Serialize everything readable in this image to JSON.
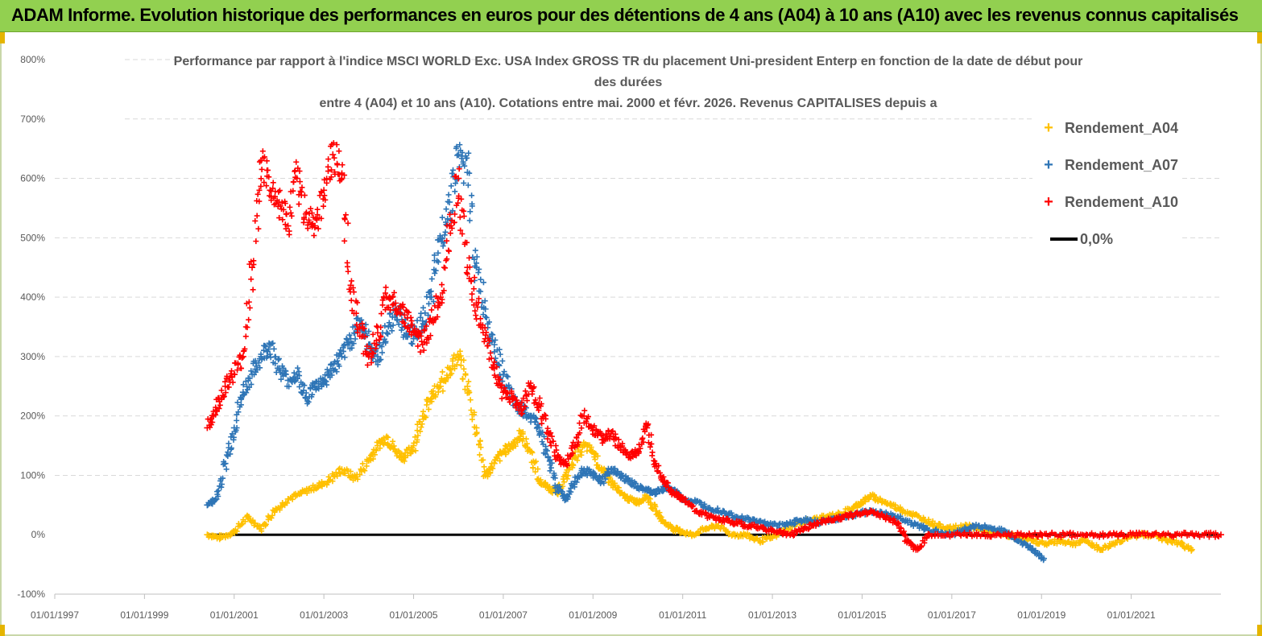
{
  "banner": {
    "title": "ADAM Informe. Evolution historique des performances en euros pour des détentions de 4 ans (A04) à 10 ans (A10) avec les revenus connus capitalisés"
  },
  "colors": {
    "banner_bg": "#92d050",
    "a04": "#ffc000",
    "a07": "#2e75b6",
    "a10": "#ff0000",
    "zero": "#000000"
  },
  "chart_data": {
    "type": "scatter",
    "title_lines": [
      "Performance par rapport à l'indice MSCI WORLD Exc. USA Index GROSS TR  du placement Uni-president Enterp  en fonction de la date de début pour",
      "des durées",
      "entre 4 (A04) et 10 ans (A10). Cotations entre mai. 2000 et févr. 2026. Revenus CAPITALISES depuis a"
    ],
    "xlabel": "",
    "ylabel": "",
    "xlim": [
      1997.0,
      2023.0
    ],
    "ylim": [
      -100,
      800
    ],
    "y_ticks": [
      "800%",
      "700%",
      "600%",
      "500%",
      "400%",
      "300%",
      "200%",
      "100%",
      "0%",
      "-100%"
    ],
    "y_tick_values": [
      800,
      700,
      600,
      500,
      400,
      300,
      200,
      100,
      0,
      -100
    ],
    "x_ticks": [
      "01/01/1997",
      "01/01/1999",
      "01/01/2001",
      "01/01/2003",
      "01/01/2005",
      "01/01/2007",
      "01/01/2009",
      "01/01/2011",
      "01/01/2013",
      "01/01/2015",
      "01/01/2017",
      "01/01/2019",
      "01/01/2021"
    ],
    "x_tick_values": [
      1997,
      1999,
      2001,
      2003,
      2005,
      2007,
      2009,
      2011,
      2013,
      2015,
      2017,
      2019,
      2021
    ],
    "gridlines": "horizontal",
    "legend_position": "top-right",
    "series": [
      {
        "name": "Rendement_A04",
        "marker": "+",
        "x": [
          2000.4,
          2000.7,
          2001.0,
          2001.3,
          2001.6,
          2001.9,
          2002.2,
          2002.5,
          2002.8,
          2003.1,
          2003.4,
          2003.7,
          2004.0,
          2004.2,
          2004.4,
          2004.6,
          2004.8,
          2005.0,
          2005.2,
          2005.4,
          2005.6,
          2005.8,
          2006.0,
          2006.2,
          2006.4,
          2006.6,
          2006.8,
          2007.0,
          2007.2,
          2007.4,
          2007.6,
          2007.8,
          2008.0,
          2008.2,
          2008.4,
          2008.6,
          2008.8,
          2009.0,
          2009.2,
          2009.4,
          2009.6,
          2009.8,
          2010.0,
          2010.2,
          2010.4,
          2010.6,
          2010.8,
          2011.0,
          2011.2,
          2011.5,
          2011.8,
          2012.1,
          2012.4,
          2012.7,
          2013.0,
          2013.3,
          2013.6,
          2013.9,
          2014.2,
          2014.5,
          2014.8,
          2015.0,
          2015.2,
          2015.5,
          2015.8,
          2016.1,
          2016.4,
          2016.7,
          2017.0,
          2017.3,
          2017.6,
          2017.9,
          2018.2,
          2018.5,
          2018.8,
          2019.1,
          2019.4,
          2019.7,
          2020.0,
          2020.3,
          2020.6,
          2020.9,
          2021.2,
          2021.5,
          2021.8,
          2022.1,
          2022.35
        ],
        "values": [
          0,
          -5,
          5,
          30,
          10,
          40,
          60,
          70,
          80,
          90,
          110,
          95,
          125,
          150,
          165,
          140,
          130,
          150,
          200,
          230,
          250,
          280,
          300,
          250,
          180,
          100,
          120,
          140,
          150,
          170,
          140,
          90,
          80,
          70,
          100,
          130,
          150,
          140,
          110,
          90,
          70,
          60,
          55,
          65,
          40,
          20,
          10,
          5,
          0,
          10,
          15,
          0,
          0,
          -10,
          -5,
          10,
          20,
          25,
          30,
          35,
          45,
          55,
          65,
          55,
          45,
          35,
          25,
          15,
          10,
          15,
          10,
          5,
          0,
          -5,
          -10,
          -15,
          -10,
          -15,
          -10,
          -25,
          -15,
          -5,
          0,
          0,
          -10,
          -15,
          -25
        ]
      },
      {
        "name": "Rendement_A07",
        "marker": "+",
        "x": [
          2000.4,
          2000.6,
          2000.8,
          2001.0,
          2001.2,
          2001.4,
          2001.6,
          2001.8,
          2002.0,
          2002.2,
          2002.4,
          2002.6,
          2002.8,
          2003.0,
          2003.2,
          2003.4,
          2003.6,
          2003.8,
          2004.0,
          2004.2,
          2004.4,
          2004.6,
          2004.8,
          2005.0,
          2005.2,
          2005.4,
          2005.6,
          2005.8,
          2006.0,
          2006.2,
          2006.4,
          2006.6,
          2006.8,
          2007.0,
          2007.2,
          2007.4,
          2007.6,
          2007.8,
          2008.0,
          2008.2,
          2008.4,
          2008.6,
          2008.8,
          2009.0,
          2009.2,
          2009.4,
          2009.6,
          2009.8,
          2010.0,
          2010.2,
          2010.4,
          2010.6,
          2010.8,
          2011.0,
          2011.3,
          2011.6,
          2011.9,
          2012.2,
          2012.5,
          2012.8,
          2013.1,
          2013.4,
          2013.7,
          2014.0,
          2014.3,
          2014.6,
          2014.9,
          2015.2,
          2015.5,
          2015.8,
          2016.1,
          2016.4,
          2016.7,
          2017.0,
          2017.3,
          2017.6,
          2017.9,
          2018.2,
          2018.5,
          2018.8,
          2019.05
        ],
        "values": [
          50,
          60,
          120,
          180,
          240,
          270,
          300,
          320,
          280,
          260,
          270,
          230,
          250,
          260,
          280,
          300,
          330,
          360,
          320,
          300,
          340,
          380,
          350,
          330,
          360,
          400,
          500,
          560,
          640,
          610,
          450,
          380,
          320,
          270,
          230,
          210,
          200,
          180,
          130,
          80,
          60,
          90,
          110,
          100,
          90,
          110,
          100,
          90,
          80,
          75,
          70,
          80,
          75,
          60,
          55,
          45,
          40,
          30,
          25,
          20,
          15,
          20,
          25,
          20,
          25,
          30,
          35,
          40,
          35,
          30,
          20,
          10,
          5,
          0,
          10,
          15,
          10,
          5,
          -10,
          -25,
          -40
        ]
      },
      {
        "name": "Rendement_A10",
        "marker": "+",
        "x": [
          2000.4,
          2000.6,
          2000.8,
          2001.0,
          2001.2,
          2001.4,
          2001.6,
          2001.8,
          2002.0,
          2002.2,
          2002.4,
          2002.6,
          2002.8,
          2003.0,
          2003.2,
          2003.4,
          2003.6,
          2003.8,
          2004.0,
          2004.2,
          2004.4,
          2004.6,
          2004.8,
          2005.0,
          2005.2,
          2005.4,
          2005.6,
          2005.8,
          2006.0,
          2006.2,
          2006.4,
          2006.6,
          2006.8,
          2007.0,
          2007.2,
          2007.4,
          2007.6,
          2007.8,
          2008.0,
          2008.2,
          2008.4,
          2008.6,
          2008.8,
          2009.0,
          2009.2,
          2009.4,
          2009.6,
          2009.8,
          2010.0,
          2010.2,
          2010.4,
          2010.6,
          2010.8,
          2011.0,
          2011.3,
          2011.6,
          2011.9,
          2012.2,
          2012.5,
          2012.8,
          2013.1,
          2013.4,
          2013.7,
          2014.0,
          2014.3,
          2014.6,
          2014.9,
          2015.2,
          2015.5,
          2015.8,
          2016.0,
          2016.2,
          2016.5,
          2017.0,
          2017.5,
          2018.0,
          2018.5,
          2019.0,
          2019.5,
          2020.0,
          2020.5,
          2021.0,
          2021.5,
          2022.0,
          2022.5,
          2023.0
        ],
        "values": [
          180,
          210,
          250,
          270,
          300,
          450,
          630,
          580,
          560,
          520,
          600,
          540,
          520,
          580,
          640,
          600,
          420,
          350,
          300,
          340,
          400,
          390,
          370,
          340,
          320,
          360,
          400,
          520,
          600,
          450,
          390,
          330,
          280,
          240,
          230,
          210,
          250,
          220,
          170,
          130,
          120,
          150,
          200,
          180,
          160,
          170,
          150,
          130,
          140,
          180,
          120,
          90,
          70,
          60,
          40,
          30,
          25,
          20,
          15,
          10,
          5,
          0,
          10,
          20,
          25,
          30,
          35,
          40,
          30,
          20,
          -10,
          -25,
          0,
          0,
          0,
          0,
          0,
          0,
          0,
          0,
          0,
          0,
          0,
          0,
          0,
          0
        ]
      },
      {
        "name": "0,0%",
        "marker": "line",
        "x": [
          2000.4,
          2023.0
        ],
        "values": [
          0,
          0
        ]
      }
    ]
  }
}
